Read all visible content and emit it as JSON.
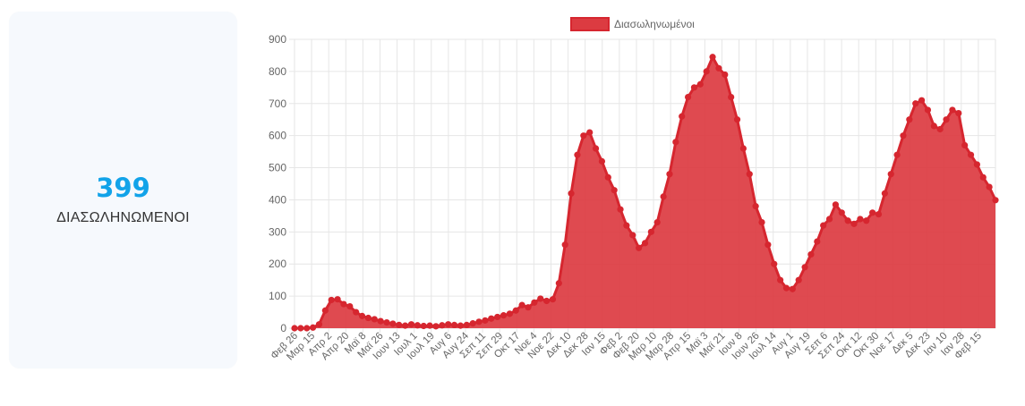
{
  "stat": {
    "value": "399",
    "label": "ΔΙΑΣΩΛΗΝΩΜΕΝΟΙ"
  },
  "colors": {
    "accent_value": "#12a3e9",
    "series_fill": "#dc3b41",
    "series_line": "#d6262f",
    "card_bg": "#f6f9fd",
    "grid": "#e6e6e6",
    "tick_text": "#666666"
  },
  "chart_data": {
    "type": "area",
    "legend": {
      "position": "top-center",
      "entries": [
        "Διασωληνωμένοι"
      ]
    },
    "grid": true,
    "ylim": [
      0,
      900
    ],
    "y_ticks": [
      0,
      100,
      200,
      300,
      400,
      500,
      600,
      700,
      800,
      900
    ],
    "xlabel": "",
    "ylabel": "",
    "x_tick_labels": [
      "Φεβ 26",
      "Μαρ 15",
      "Απρ 2",
      "Απρ 20",
      "Μαϊ 8",
      "Μαϊ 26",
      "Ιουν 13",
      "Ιουλ 1",
      "Ιουλ 19",
      "Αυγ 6",
      "Αυγ 24",
      "Σεπ 11",
      "Σεπ 29",
      "Οκτ 17",
      "Νοε 4",
      "Νοε 22",
      "Δεκ 10",
      "Δεκ 28",
      "Ιαν 15",
      "Φεβ 2",
      "Φεβ 20",
      "Μαρ 10",
      "Μαρ 28",
      "Απρ 15",
      "Μαϊ 3",
      "Μαϊ 21",
      "Ιουν 8",
      "Ιουν 26",
      "Ιουλ 14",
      "Αυγ 1",
      "Αυγ 19",
      "Σεπ 6",
      "Σεπ 24",
      "Οκτ 12",
      "Οκτ 30",
      "Νοε 17",
      "Δεκ 5",
      "Δεκ 23",
      "Ιαν 10",
      "Ιαν 28",
      "Φεβ 15"
    ],
    "series": [
      {
        "name": "Διασωληνωμένοι",
        "values": [
          0,
          0,
          0,
          2,
          12,
          55,
          88,
          90,
          75,
          68,
          50,
          38,
          32,
          28,
          22,
          18,
          14,
          10,
          8,
          12,
          9,
          7,
          8,
          6,
          9,
          12,
          10,
          8,
          10,
          15,
          20,
          24,
          30,
          35,
          40,
          45,
          55,
          72,
          65,
          80,
          92,
          85,
          90,
          140,
          260,
          420,
          540,
          600,
          610,
          560,
          520,
          470,
          430,
          370,
          320,
          290,
          250,
          265,
          300,
          330,
          410,
          480,
          580,
          660,
          720,
          750,
          760,
          800,
          845,
          810,
          790,
          720,
          650,
          560,
          480,
          380,
          330,
          260,
          200,
          150,
          125,
          122,
          150,
          190,
          230,
          270,
          320,
          340,
          385,
          360,
          335,
          325,
          340,
          335,
          360,
          355,
          420,
          480,
          540,
          600,
          650,
          700,
          710,
          680,
          630,
          620,
          650,
          680,
          670,
          570,
          540,
          510,
          470,
          440,
          399
        ]
      }
    ]
  }
}
